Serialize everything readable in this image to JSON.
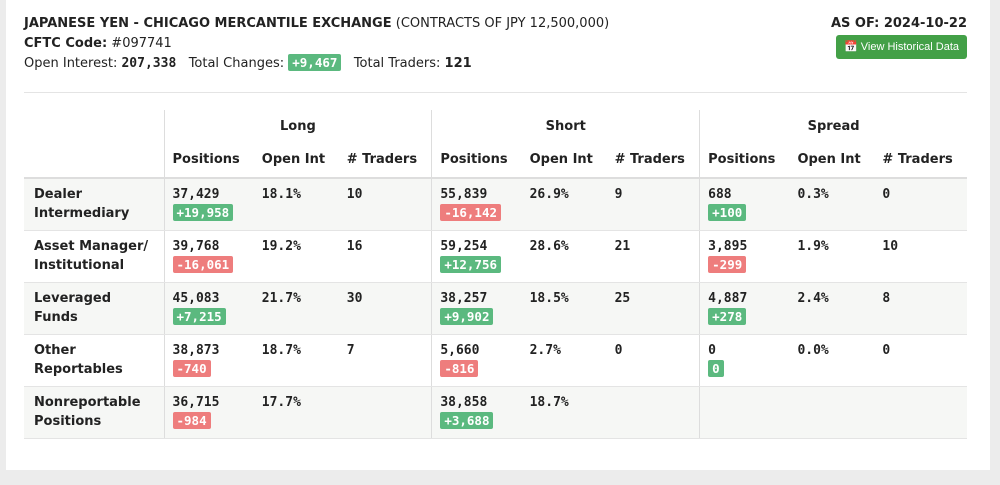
{
  "header": {
    "title": "JAPANESE YEN - CHICAGO MERCANTILE EXCHANGE",
    "subtitle": "(CONTRACTS OF JPY 12,500,000)",
    "cftc_label": "CFTC Code:",
    "cftc_code": "#097741",
    "oi_label": "Open Interest:",
    "oi": "207,338",
    "tc_label": "Total Changes:",
    "tc": "+9,467",
    "tt_label": "Total Traders:",
    "tt": "121",
    "as_of": "AS OF: 2024-10-22",
    "button": "View Historical Data"
  },
  "groups": [
    "Long",
    "Short",
    "Spread"
  ],
  "subcols": [
    "Positions",
    "Open Int",
    "# Traders"
  ],
  "colors": {
    "positive": "#5bb97f",
    "negative": "#ee7d7d",
    "button": "#43a047"
  },
  "rows": [
    {
      "label": "Dealer Intermediary",
      "cells": [
        {
          "pos": "37,429",
          "chg": "+19,958",
          "oi": "18.1%",
          "tr": "10"
        },
        {
          "pos": "55,839",
          "chg": "-16,142",
          "oi": "26.9%",
          "tr": "9"
        },
        {
          "pos": "688",
          "chg": "+100",
          "oi": "0.3%",
          "tr": "0"
        }
      ]
    },
    {
      "label": "Asset Manager/ Institutional",
      "cells": [
        {
          "pos": "39,768",
          "chg": "-16,061",
          "oi": "19.2%",
          "tr": "16"
        },
        {
          "pos": "59,254",
          "chg": "+12,756",
          "oi": "28.6%",
          "tr": "21"
        },
        {
          "pos": "3,895",
          "chg": "-299",
          "oi": "1.9%",
          "tr": "10"
        }
      ]
    },
    {
      "label": "Leveraged Funds",
      "cells": [
        {
          "pos": "45,083",
          "chg": "+7,215",
          "oi": "21.7%",
          "tr": "30"
        },
        {
          "pos": "38,257",
          "chg": "+9,902",
          "oi": "18.5%",
          "tr": "25"
        },
        {
          "pos": "4,887",
          "chg": "+278",
          "oi": "2.4%",
          "tr": "8"
        }
      ]
    },
    {
      "label": "Other Reportables",
      "cells": [
        {
          "pos": "38,873",
          "chg": "-740",
          "oi": "18.7%",
          "tr": "7"
        },
        {
          "pos": "5,660",
          "chg": "-816",
          "oi": "2.7%",
          "tr": "0"
        },
        {
          "pos": "0",
          "chg": "0",
          "oi": "0.0%",
          "tr": "0"
        }
      ]
    },
    {
      "label": "Nonreportable Positions",
      "cells": [
        {
          "pos": "36,715",
          "chg": "-984",
          "oi": "17.7%",
          "tr": ""
        },
        {
          "pos": "38,858",
          "chg": "+3,688",
          "oi": "18.7%",
          "tr": ""
        },
        null
      ]
    }
  ]
}
